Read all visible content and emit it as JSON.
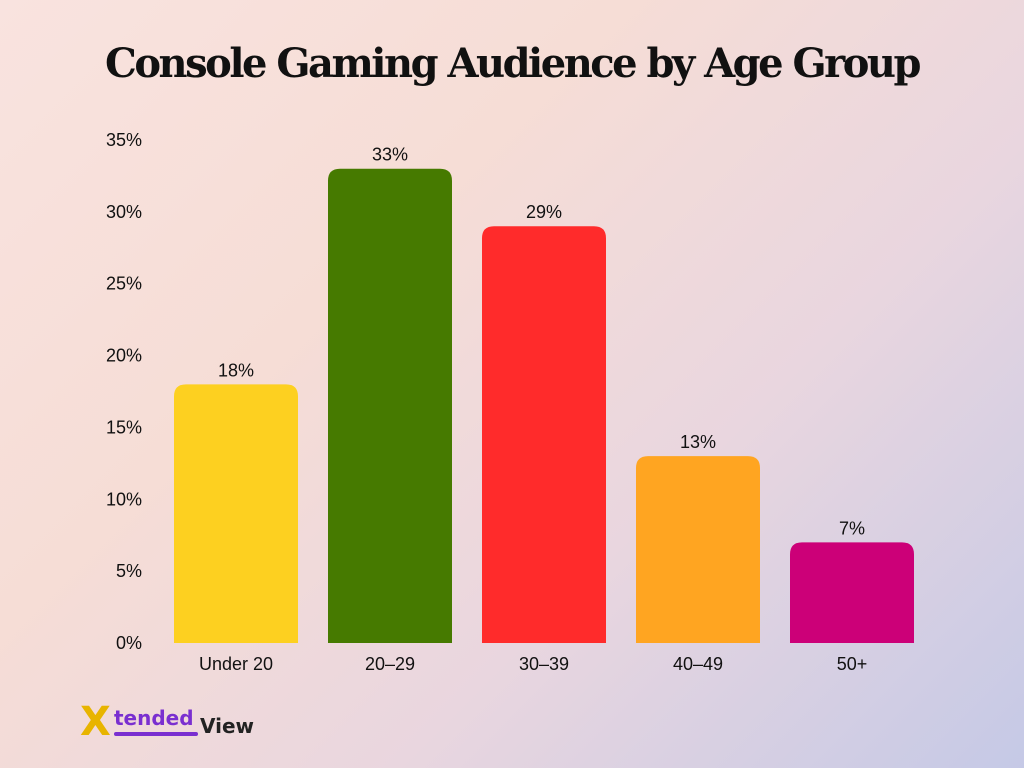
{
  "chart_data": {
    "type": "bar",
    "title": "Console Gaming Audience by Age Group",
    "categories": [
      "Under 20",
      "20–29",
      "30–39",
      "40–49",
      "50+"
    ],
    "values": [
      18,
      33,
      29,
      13,
      7
    ],
    "value_labels": [
      "18%",
      "33%",
      "29%",
      "13%",
      "7%"
    ],
    "bar_colors": [
      "#fdd020",
      "#467a00",
      "#ff2b2b",
      "#ffa521",
      "#cc0078"
    ],
    "xlabel": "",
    "ylabel": "",
    "ylim": [
      0,
      35
    ],
    "y_ticks": [
      0,
      5,
      10,
      15,
      20,
      25,
      30,
      35
    ],
    "y_tick_labels": [
      "0%",
      "5%",
      "10%",
      "15%",
      "20%",
      "25%",
      "30%",
      "35%"
    ],
    "grid": false,
    "legend": "none"
  },
  "logo": {
    "mark": "X",
    "word1": "tended",
    "word2": "View"
  }
}
